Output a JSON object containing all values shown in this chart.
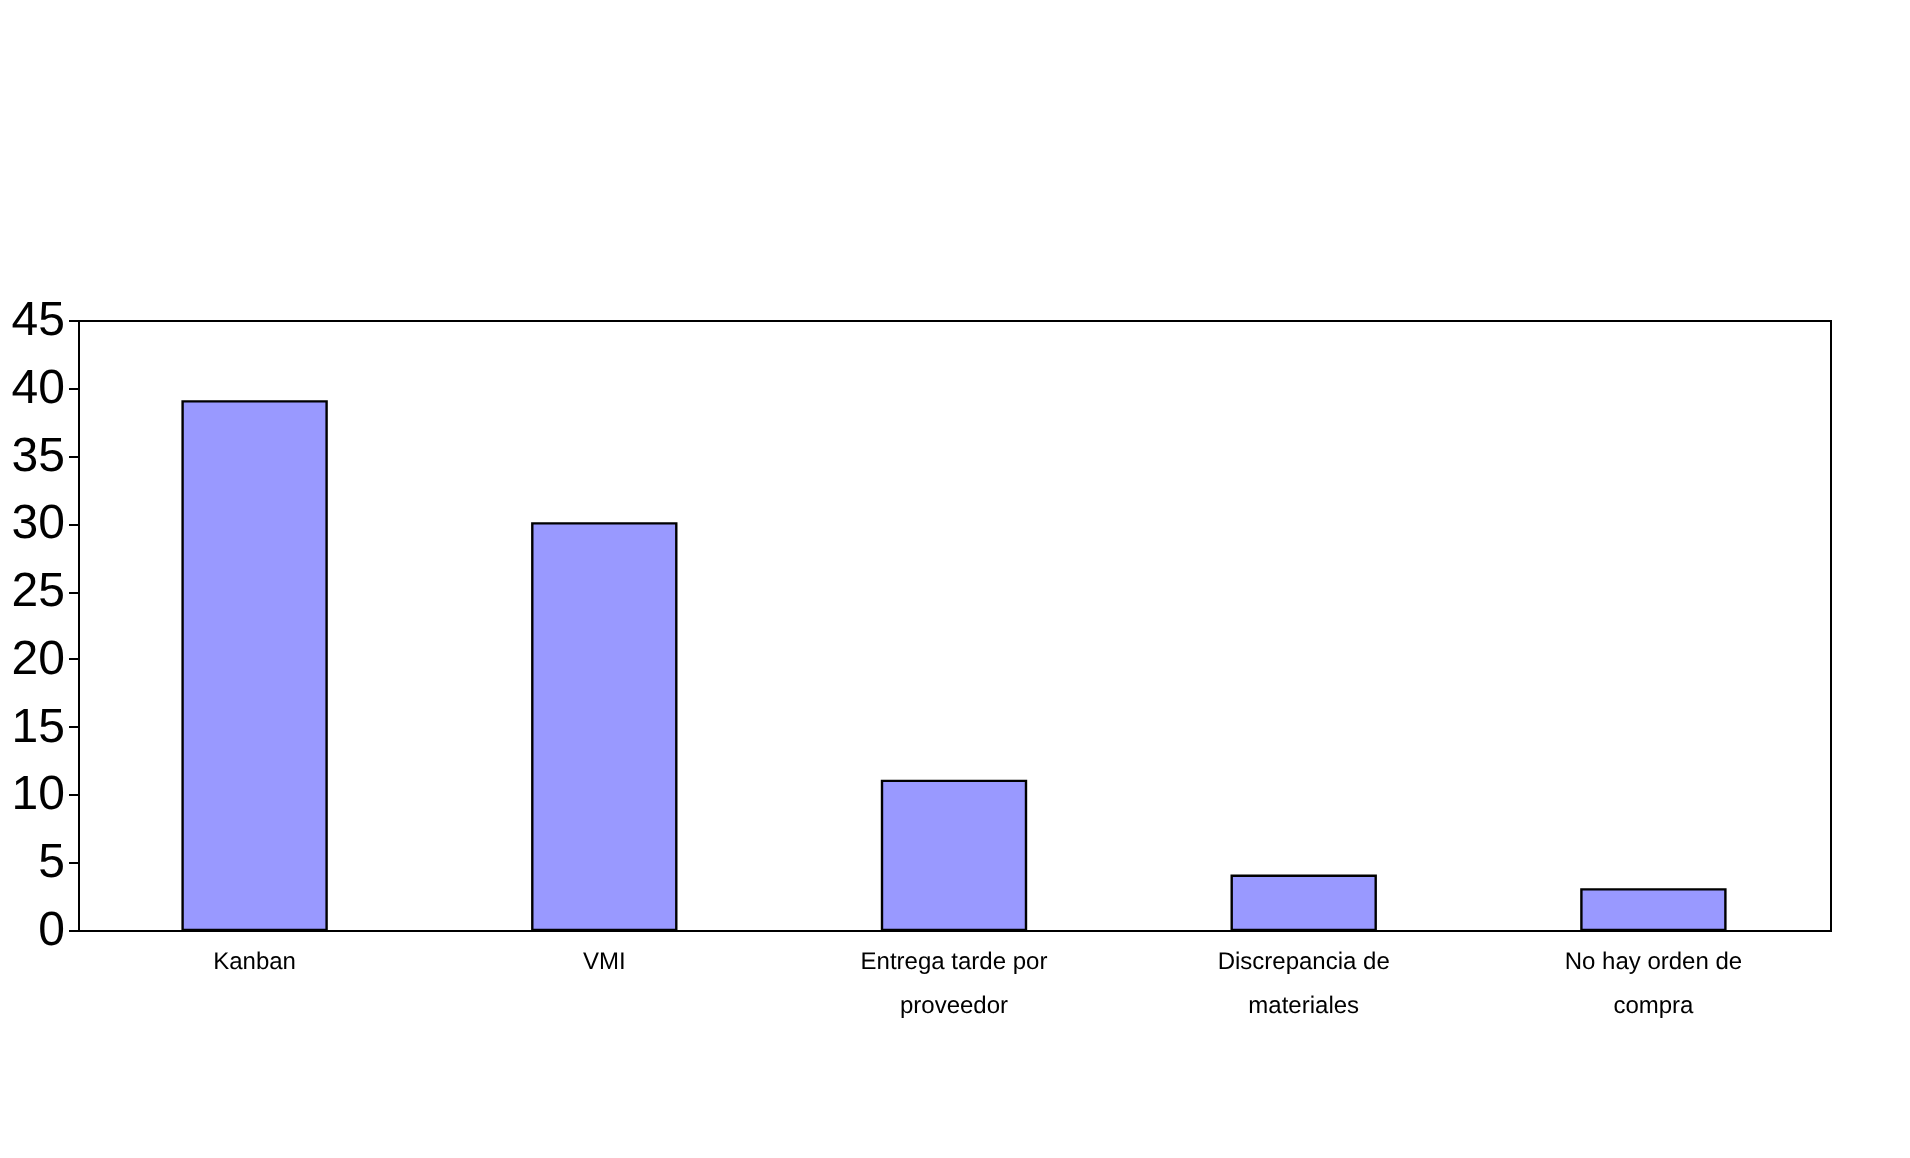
{
  "chart_data": {
    "type": "bar",
    "categories": [
      "Kanban",
      "VMI",
      "Entrega tarde por proveedor",
      "Discrepancia de materiales",
      "No hay orden de compra"
    ],
    "values": [
      39,
      30,
      11,
      4,
      3
    ],
    "color": "#9999ff",
    "ylim": [
      0,
      45
    ],
    "yticks": [
      0,
      5,
      10,
      15,
      20,
      25,
      30,
      35,
      40,
      45
    ],
    "grid": false
  }
}
